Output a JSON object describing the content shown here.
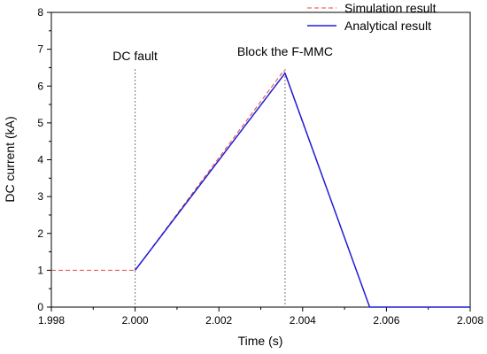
{
  "chart_data": {
    "type": "line",
    "xlabel": "Time (s)",
    "ylabel": "DC current (kA)",
    "xlim": [
      1.998,
      2.008
    ],
    "ylim": [
      0,
      8
    ],
    "xticks": [
      1.998,
      2.0,
      2.002,
      2.004,
      2.006,
      2.008
    ],
    "xtick_labels": [
      "1.998",
      "2.000",
      "2.002",
      "2.004",
      "2.006",
      "2.008"
    ],
    "yticks": [
      0,
      1,
      2,
      3,
      4,
      5,
      6,
      7,
      8
    ],
    "ytick_labels": [
      "0",
      "1",
      "2",
      "3",
      "4",
      "5",
      "6",
      "7",
      "8"
    ],
    "grid": false,
    "legend_position": "top-right",
    "series": [
      {
        "name": "Simulation result",
        "color": "#e8443a",
        "style": "dashed",
        "x": [
          1.998,
          2.0,
          2.00355,
          2.0056,
          2.008
        ],
        "y": [
          1.0,
          1.0,
          6.42,
          0.0,
          0.0
        ]
      },
      {
        "name": "Analytical result",
        "color": "#1f1fd6",
        "style": "solid",
        "x": [
          2.0,
          2.00358,
          2.0056,
          2.008
        ],
        "y": [
          1.0,
          6.35,
          0.0,
          0.0
        ]
      }
    ],
    "annotations": [
      {
        "text": "DC fault",
        "x": 2.0
      },
      {
        "text": "Block the F-MMC",
        "x": 2.00358
      }
    ]
  }
}
